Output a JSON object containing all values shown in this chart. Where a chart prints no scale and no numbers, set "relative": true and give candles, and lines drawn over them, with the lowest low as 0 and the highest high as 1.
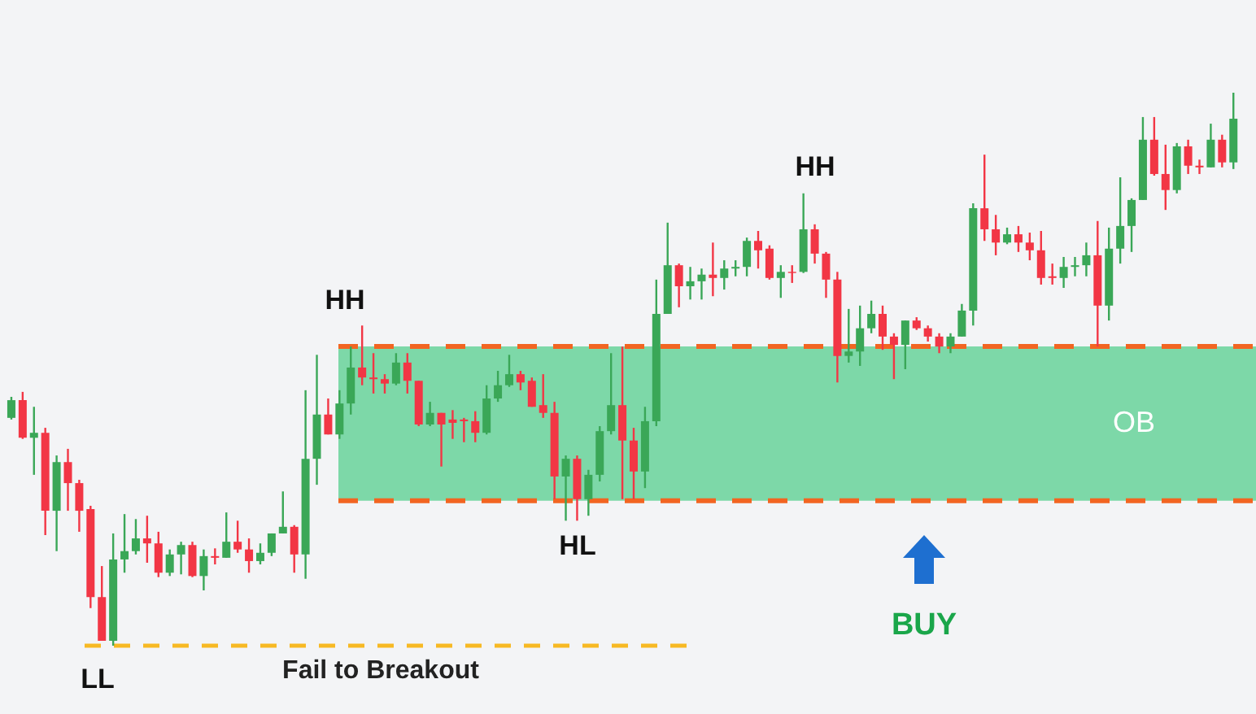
{
  "chart_data": {
    "type": "candlestick",
    "relative": true,
    "categories": [
      null,
      null,
      null,
      null,
      null,
      null,
      null,
      null,
      null,
      null,
      null,
      null,
      null,
      null,
      null,
      null,
      null,
      null,
      null,
      null,
      null,
      null,
      null,
      null,
      null,
      null,
      null,
      null,
      null,
      null,
      null,
      null,
      null,
      null,
      null,
      null,
      null,
      null,
      null,
      null,
      null,
      null,
      null,
      null,
      null,
      null,
      null,
      null,
      null,
      null,
      null,
      null,
      null,
      null,
      null,
      null,
      null,
      null,
      null,
      null,
      null,
      null,
      null,
      null,
      null,
      null,
      null,
      null,
      null,
      null,
      null,
      null,
      null,
      null,
      null,
      null,
      null,
      null,
      null,
      null,
      null,
      null,
      null,
      null,
      null,
      null,
      null,
      null,
      null,
      null,
      null,
      null,
      null,
      null,
      null,
      null,
      null,
      null,
      null,
      null,
      null,
      null,
      null,
      null,
      null,
      null,
      null,
      null,
      null
    ],
    "ohlc": [
      [
        0.412,
        0.45,
        0.409,
        0.444
      ],
      [
        0.444,
        0.459,
        0.374,
        0.376
      ],
      [
        0.376,
        0.432,
        0.309,
        0.385
      ],
      [
        0.385,
        0.394,
        0.2,
        0.244
      ],
      [
        0.244,
        0.344,
        0.171,
        0.332
      ],
      [
        0.332,
        0.356,
        0.244,
        0.294
      ],
      [
        0.294,
        0.3,
        0.206,
        0.244
      ],
      [
        0.247,
        0.253,
        0.068,
        0.088
      ],
      [
        0.088,
        0.144,
        0.009,
        0.009
      ],
      [
        0.009,
        0.203,
        0,
        0.156
      ],
      [
        0.156,
        0.238,
        0.132,
        0.171
      ],
      [
        0.171,
        0.229,
        0.165,
        0.194
      ],
      [
        0.194,
        0.235,
        0.15,
        0.185
      ],
      [
        0.185,
        0.206,
        0.124,
        0.132
      ],
      [
        0.132,
        0.174,
        0.126,
        0.165
      ],
      [
        0.165,
        0.188,
        0.129,
        0.182
      ],
      [
        0.182,
        0.188,
        0.124,
        0.126
      ],
      [
        0.126,
        0.174,
        0.1,
        0.162
      ],
      [
        0.162,
        0.176,
        0.147,
        0.159
      ],
      [
        0.159,
        0.241,
        0.159,
        0.188
      ],
      [
        0.188,
        0.226,
        0.168,
        0.174
      ],
      [
        0.174,
        0.194,
        0.132,
        0.153
      ],
      [
        0.153,
        0.185,
        0.147,
        0.168
      ],
      [
        0.168,
        0.203,
        0.162,
        0.203
      ],
      [
        0.203,
        0.279,
        0.203,
        0.215
      ],
      [
        0.215,
        0.218,
        0.132,
        0.165
      ],
      [
        0.165,
        0.462,
        0.121,
        0.338
      ],
      [
        0.338,
        0.526,
        0.291,
        0.418
      ],
      [
        0.418,
        0.447,
        0.382,
        0.382
      ],
      [
        0.382,
        0.462,
        0.374,
        0.438
      ],
      [
        0.438,
        0.541,
        0.418,
        0.503
      ],
      [
        0.503,
        0.579,
        0.471,
        0.485
      ],
      [
        0.485,
        0.529,
        0.456,
        0.482
      ],
      [
        0.482,
        0.491,
        0.456,
        0.474
      ],
      [
        0.474,
        0.529,
        0.471,
        0.512
      ],
      [
        0.512,
        0.529,
        0.456,
        0.479
      ],
      [
        0.479,
        0.479,
        0.397,
        0.4
      ],
      [
        0.4,
        0.441,
        0.397,
        0.421
      ],
      [
        0.421,
        0.421,
        0.324,
        0.4
      ],
      [
        0.409,
        0.426,
        0.374,
        0.403
      ],
      [
        0.409,
        0.412,
        0.368,
        0.406
      ],
      [
        0.406,
        0.424,
        0.368,
        0.385
      ],
      [
        0.385,
        0.471,
        0.382,
        0.447
      ],
      [
        0.447,
        0.497,
        0.441,
        0.471
      ],
      [
        0.471,
        0.526,
        0.468,
        0.491
      ],
      [
        0.491,
        0.497,
        0.462,
        0.476
      ],
      [
        0.479,
        0.485,
        0.432,
        0.432
      ],
      [
        0.435,
        0.491,
        0.412,
        0.421
      ],
      [
        0.421,
        0.441,
        0.265,
        0.306
      ],
      [
        0.306,
        0.344,
        0.226,
        0.338
      ],
      [
        0.338,
        0.344,
        0.226,
        0.265
      ],
      [
        0.265,
        0.318,
        0.235,
        0.309
      ],
      [
        0.309,
        0.397,
        0.297,
        0.388
      ],
      [
        0.388,
        0.529,
        0.382,
        0.435
      ],
      [
        0.435,
        0.541,
        0.265,
        0.371
      ],
      [
        0.371,
        0.394,
        0.265,
        0.315
      ],
      [
        0.315,
        0.432,
        0.285,
        0.406
      ],
      [
        0.406,
        0.662,
        0.397,
        0.6
      ],
      [
        0.6,
        0.765,
        0.6,
        0.688
      ],
      [
        0.688,
        0.691,
        0.612,
        0.65
      ],
      [
        0.65,
        0.685,
        0.626,
        0.659
      ],
      [
        0.659,
        0.682,
        0.626,
        0.671
      ],
      [
        0.671,
        0.729,
        0.632,
        0.665
      ],
      [
        0.665,
        0.697,
        0.644,
        0.682
      ],
      [
        0.682,
        0.697,
        0.668,
        0.685
      ],
      [
        0.685,
        0.738,
        0.668,
        0.732
      ],
      [
        0.732,
        0.75,
        0.682,
        0.715
      ],
      [
        0.718,
        0.724,
        0.662,
        0.665
      ],
      [
        0.665,
        0.688,
        0.629,
        0.676
      ],
      [
        0.676,
        0.688,
        0.656,
        0.674
      ],
      [
        0.676,
        0.818,
        0.674,
        0.753
      ],
      [
        0.753,
        0.762,
        0.691,
        0.709
      ],
      [
        0.709,
        0.712,
        0.629,
        0.662
      ],
      [
        0.662,
        0.676,
        0.476,
        0.524
      ],
      [
        0.524,
        0.609,
        0.512,
        0.532
      ],
      [
        0.532,
        0.615,
        0.506,
        0.574
      ],
      [
        0.574,
        0.624,
        0.565,
        0.6
      ],
      [
        0.6,
        0.615,
        0.535,
        0.559
      ],
      [
        0.559,
        0.565,
        0.482,
        0.544
      ],
      [
        0.544,
        0.588,
        0.5,
        0.588
      ],
      [
        0.588,
        0.594,
        0.571,
        0.574
      ],
      [
        0.574,
        0.579,
        0.55,
        0.559
      ],
      [
        0.559,
        0.565,
        0.529,
        0.541
      ],
      [
        0.541,
        0.565,
        0.529,
        0.559
      ],
      [
        0.559,
        0.618,
        0.559,
        0.606
      ],
      [
        0.606,
        0.8,
        0.579,
        0.791
      ],
      [
        0.791,
        0.888,
        0.732,
        0.753
      ],
      [
        0.753,
        0.779,
        0.706,
        0.729
      ],
      [
        0.729,
        0.756,
        0.726,
        0.744
      ],
      [
        0.744,
        0.759,
        0.712,
        0.729
      ],
      [
        0.729,
        0.747,
        0.697,
        0.715
      ],
      [
        0.715,
        0.75,
        0.653,
        0.665
      ],
      [
        0.668,
        0.691,
        0.653,
        0.665
      ],
      [
        0.665,
        0.703,
        0.647,
        0.685
      ],
      [
        0.685,
        0.703,
        0.668,
        0.688
      ],
      [
        0.688,
        0.729,
        0.668,
        0.706
      ],
      [
        0.706,
        0.768,
        0.541,
        0.615
      ],
      [
        0.615,
        0.756,
        0.588,
        0.718
      ],
      [
        0.718,
        0.847,
        0.691,
        0.759
      ],
      [
        0.759,
        0.809,
        0.712,
        0.806
      ],
      [
        0.806,
        0.956,
        0.806,
        0.915
      ],
      [
        0.915,
        0.956,
        0.85,
        0.853
      ],
      [
        0.853,
        0.906,
        0.788,
        0.824
      ],
      [
        0.824,
        0.909,
        0.818,
        0.903
      ],
      [
        0.903,
        0.915,
        0.853,
        0.868
      ],
      [
        0.868,
        0.879,
        0.853,
        0.865
      ],
      [
        0.865,
        0.944,
        0.865,
        0.915
      ],
      [
        0.915,
        0.924,
        0.865,
        0.874
      ],
      [
        0.874,
        1,
        0.862,
        0.953
      ]
    ],
    "colors": [
      "#3aa757",
      "#f23645",
      "#3aa757",
      "#f23645",
      "#3aa757",
      "#f23645",
      "#f23645",
      "#f23645",
      "#f23645",
      "#3aa757",
      "#3aa757",
      "#3aa757",
      "#f23645",
      "#f23645",
      "#3aa757",
      "#3aa757",
      "#f23645",
      "#3aa757",
      "#f23645",
      "#3aa757",
      "#f23645",
      "#f23645",
      "#3aa757",
      "#3aa757",
      "#3aa757",
      "#f23645",
      "#3aa757",
      "#3aa757",
      "#f23645",
      "#3aa757",
      "#3aa757",
      "#f23645",
      "#f23645",
      "#f23645",
      "#3aa757",
      "#f23645",
      "#f23645",
      "#3aa757",
      "#f23645",
      "#f23645",
      "#f23645",
      "#f23645",
      "#3aa757",
      "#3aa757",
      "#3aa757",
      "#f23645",
      "#f23645",
      "#f23645",
      "#f23645",
      "#3aa757",
      "#f23645",
      "#3aa757",
      "#3aa757",
      "#3aa757",
      "#f23645",
      "#f23645",
      "#3aa757",
      "#3aa757",
      "#3aa757",
      "#f23645",
      "#3aa757",
      "#3aa757",
      "#f23645",
      "#3aa757",
      "#3aa757",
      "#3aa757",
      "#f23645",
      "#f23645",
      "#3aa757",
      "#f23645",
      "#3aa757",
      "#f23645",
      "#f23645",
      "#f23645",
      "#3aa757",
      "#3aa757",
      "#3aa757",
      "#f23645",
      "#f23645",
      "#3aa757",
      "#f23645",
      "#f23645",
      "#f23645",
      "#3aa757",
      "#3aa757",
      "#3aa757",
      "#f23645",
      "#f23645",
      "#3aa757",
      "#f23645",
      "#f23645",
      "#f23645",
      "#f23645",
      "#3aa757",
      "#3aa757",
      "#3aa757",
      "#f23645",
      "#3aa757",
      "#3aa757",
      "#3aa757",
      "#3aa757",
      "#f23645",
      "#f23645",
      "#3aa757",
      "#f23645",
      "#f23645",
      "#3aa757",
      "#f23645",
      "#3aa757"
    ],
    "bands": [
      {
        "axis": "y",
        "from": 0.262,
        "to": 0.541,
        "label": "OB",
        "color": "#3ec97e"
      }
    ],
    "ref_lines": [
      {
        "axis": "y",
        "value": 0,
        "label": "Fail to Breakout",
        "color": "#f7b924",
        "line_style": "dashed"
      },
      {
        "axis": "y",
        "value": 0.541,
        "color": "#f26522",
        "line_style": "dashed"
      },
      {
        "axis": "y",
        "value": 0.262,
        "color": "#f26522",
        "line_style": "dashed"
      }
    ],
    "annotations": [
      "HH",
      "HH",
      "HL",
      "LL",
      "BUY"
    ]
  }
}
